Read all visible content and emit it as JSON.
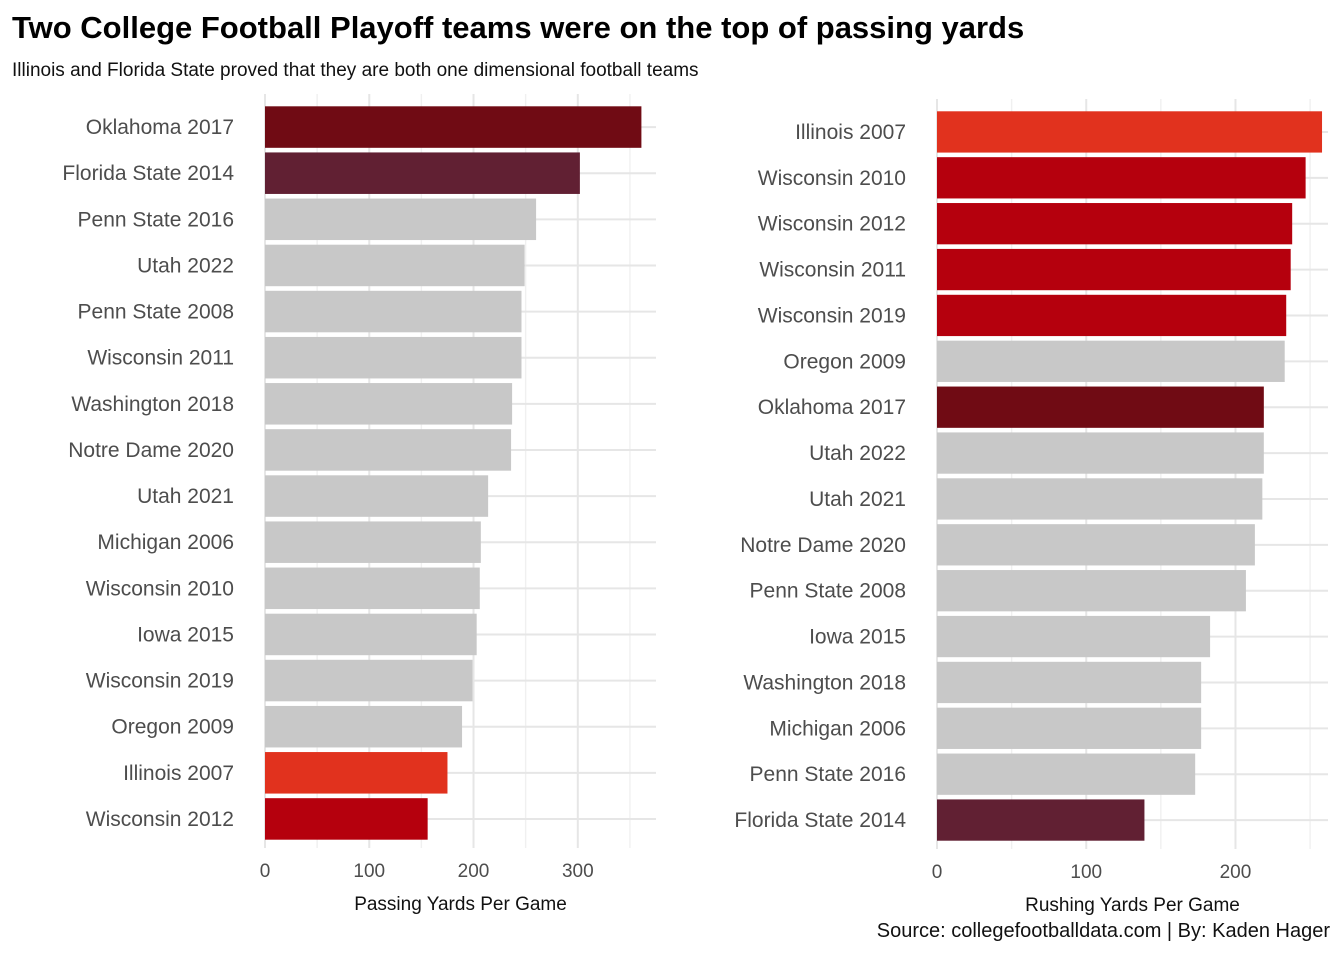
{
  "title": "Two College Football Playoff teams were on the top of passing yards",
  "subtitle": "Illinois and Florida State proved that they are both one dimensional football teams",
  "caption": "Source: collegefootballdata.com | By: Kaden Hager",
  "chart_data": [
    {
      "type": "bar",
      "orientation": "horizontal",
      "xlabel": "Passing Yards Per Game",
      "xlim": [
        0,
        375
      ],
      "xticks": [
        0,
        100,
        200,
        300
      ],
      "grid": true,
      "categories": [
        "Oklahoma 2017",
        "Florida State 2014",
        "Penn State 2016",
        "Utah 2022",
        "Penn State 2008",
        "Wisconsin 2011",
        "Washington 2018",
        "Notre Dame 2020",
        "Utah 2021",
        "Michigan 2006",
        "Wisconsin 2010",
        "Iowa 2015",
        "Wisconsin 2019",
        "Oregon 2009",
        "Illinois 2007",
        "Wisconsin 2012"
      ],
      "values": [
        361,
        302,
        260,
        249,
        246,
        246,
        237,
        236,
        214,
        207,
        206,
        203,
        199,
        189,
        175,
        156
      ],
      "colors": [
        "#700b14",
        "#612033",
        "#c8c8c8",
        "#c8c8c8",
        "#c8c8c8",
        "#c8c8c8",
        "#c8c8c8",
        "#c8c8c8",
        "#c8c8c8",
        "#c8c8c8",
        "#c8c8c8",
        "#c8c8c8",
        "#c8c8c8",
        "#c8c8c8",
        "#e1321e",
        "#b5000d"
      ]
    },
    {
      "type": "bar",
      "orientation": "horizontal",
      "xlabel": "Rushing Yards Per Game",
      "xlim": [
        0,
        262
      ],
      "xticks": [
        0,
        100,
        200
      ],
      "grid": true,
      "categories": [
        "Illinois 2007",
        "Wisconsin 2010",
        "Wisconsin 2012",
        "Wisconsin 2011",
        "Wisconsin 2019",
        "Oregon 2009",
        "Oklahoma 2017",
        "Utah 2022",
        "Utah 2021",
        "Notre Dame 2020",
        "Penn State 2008",
        "Iowa 2015",
        "Washington 2018",
        "Michigan 2006",
        "Penn State 2016",
        "Florida State 2014"
      ],
      "values": [
        258,
        247,
        238,
        237,
        234,
        233,
        219,
        219,
        218,
        213,
        207,
        183,
        177,
        177,
        173,
        139
      ],
      "colors": [
        "#e1321e",
        "#b5000d",
        "#b5000d",
        "#b5000d",
        "#b5000d",
        "#c8c8c8",
        "#700b14",
        "#c8c8c8",
        "#c8c8c8",
        "#c8c8c8",
        "#c8c8c8",
        "#c8c8c8",
        "#c8c8c8",
        "#c8c8c8",
        "#c8c8c8",
        "#612033"
      ]
    }
  ]
}
